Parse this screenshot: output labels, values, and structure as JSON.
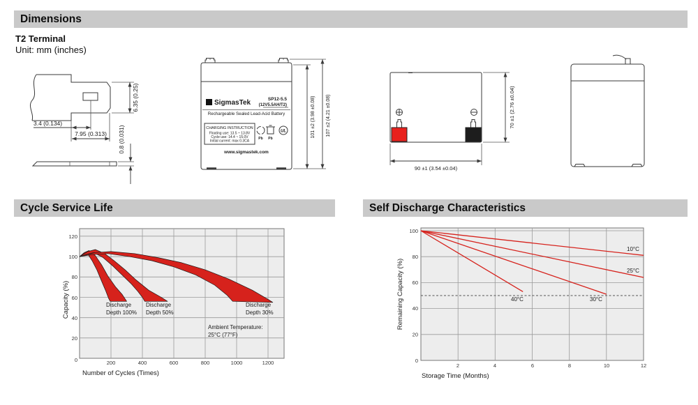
{
  "sections": {
    "dimensions_title": "Dimensions",
    "cycle_title": "Cycle Service Life",
    "self_discharge_title": "Self Discharge Characteristics"
  },
  "dimensions": {
    "terminal_type": "T2 Terminal",
    "unit_note": "Unit: mm (inches)",
    "terminal_drawing": {
      "offset": "3.4 (0.134)",
      "tab_length": "7.95 (0.313)",
      "tab_width": "6.35 (0.25)",
      "thickness": "0.8 (0.031)"
    },
    "front_view": {
      "sigma": "Σ",
      "brand": "SigmasTek",
      "model": "SP12-5.5",
      "rating": "(12V5.5AH/T2)",
      "type_line": "Rechargeable Sealed Lead-Acid Battery",
      "charging_title": "CHARGING INSTRUCTION",
      "charging_lines": [
        "Floating use: 13.5 ~ 13.8V",
        "Cycle use: 14.4 ~ 15.0V",
        "Initial current: max 0.3CA"
      ],
      "website": "www.sigmastek.com",
      "pb_label": "Pb",
      "ul_label": "UL",
      "height_dim": "101 ±2 (3.98 ±0.08)",
      "total_height_dim": "107 ±2 (4.21 ±0.08)"
    },
    "top_view": {
      "width_dim": "90 ±1 (3.54 ±0.04)",
      "depth_dim": "70 ±1 (2.76 ±0.04)"
    }
  },
  "chart_data": [
    {
      "type": "area",
      "title": "Cycle Service Life",
      "xlabel": "Number of Cycles (Times)",
      "ylabel": "Capacity (%)",
      "xlim": [
        0,
        1300
      ],
      "ylim": [
        0,
        128
      ],
      "x_ticks": [
        0,
        200,
        400,
        600,
        800,
        1000,
        1200
      ],
      "y_ticks": [
        0,
        20,
        40,
        60,
        80,
        100,
        120
      ],
      "grid": true,
      "annotation": [
        "Ambient Temperature:",
        "25°C (77°F)"
      ],
      "series": [
        {
          "name": "Discharge Depth 100%",
          "label_lines": [
            "Discharge",
            "Depth 100%"
          ],
          "upper": [
            [
              0,
              100
            ],
            [
              30,
              104
            ],
            [
              60,
              106
            ],
            [
              100,
              101
            ],
            [
              140,
              92
            ],
            [
              180,
              81
            ],
            [
              230,
              70
            ],
            [
              270,
              63
            ],
            [
              300,
              56
            ]
          ],
          "lower": [
            [
              0,
              100
            ],
            [
              25,
              102
            ],
            [
              50,
              103
            ],
            [
              80,
              96
            ],
            [
              110,
              87
            ],
            [
              140,
              76
            ],
            [
              165,
              67
            ],
            [
              185,
              59
            ],
            [
              195,
              56
            ]
          ]
        },
        {
          "name": "Discharge Depth 50%",
          "label_lines": [
            "Discharge",
            "Depth 50%"
          ],
          "upper": [
            [
              0,
              100
            ],
            [
              50,
              105
            ],
            [
              100,
              107
            ],
            [
              160,
              103
            ],
            [
              220,
              96
            ],
            [
              290,
              87
            ],
            [
              360,
              77
            ],
            [
              440,
              67
            ],
            [
              520,
              60
            ],
            [
              560,
              56
            ]
          ],
          "lower": [
            [
              0,
              100
            ],
            [
              40,
              102
            ],
            [
              90,
              104
            ],
            [
              150,
              99
            ],
            [
              210,
              91
            ],
            [
              270,
              82
            ],
            [
              330,
              73
            ],
            [
              370,
              66
            ],
            [
              400,
              60
            ],
            [
              415,
              56
            ]
          ]
        },
        {
          "name": "Discharge Depth 30%",
          "label_lines": [
            "Discharge",
            "Depth 30%"
          ],
          "upper": [
            [
              0,
              100
            ],
            [
              100,
              104
            ],
            [
              200,
              105
            ],
            [
              350,
              103
            ],
            [
              500,
              99
            ],
            [
              650,
              94
            ],
            [
              800,
              87
            ],
            [
              950,
              78
            ],
            [
              1100,
              67
            ],
            [
              1200,
              58
            ],
            [
              1230,
              55
            ]
          ],
          "lower": [
            [
              0,
              100
            ],
            [
              80,
              102
            ],
            [
              180,
              103
            ],
            [
              320,
              100
            ],
            [
              460,
              96
            ],
            [
              600,
              90
            ],
            [
              740,
              82
            ],
            [
              860,
              72
            ],
            [
              940,
              62
            ],
            [
              975,
              56
            ]
          ]
        }
      ]
    },
    {
      "type": "line",
      "title": "Self Discharge Characteristics",
      "xlabel": "Storage Time (Months)",
      "ylabel": "Remaining Capacity (%)",
      "xlim": [
        0,
        12
      ],
      "ylim": [
        0,
        100
      ],
      "x_ticks": [
        0,
        2,
        4,
        6,
        8,
        10,
        12
      ],
      "y_ticks": [
        0,
        20,
        40,
        60,
        80,
        100
      ],
      "grid": true,
      "reference_line_y": 50,
      "legend_position": "on-lines",
      "series": [
        {
          "name": "10°C",
          "points": [
            [
              0,
              100
            ],
            [
              12,
              81
            ]
          ]
        },
        {
          "name": "25°C",
          "points": [
            [
              0,
              100
            ],
            [
              12,
              64
            ]
          ]
        },
        {
          "name": "30°C",
          "points": [
            [
              0,
              100
            ],
            [
              10,
              51
            ]
          ]
        },
        {
          "name": "40°C",
          "points": [
            [
              0,
              100
            ],
            [
              5.5,
              53
            ]
          ]
        }
      ]
    }
  ],
  "colors": {
    "accent_red": "#d6221c",
    "header_bar": "#c9c9c9",
    "chart_bg": "#ededed",
    "grid_line": "#9a9a9a",
    "terminal_positive": "#e8211d",
    "terminal_negative": "#1d1d1d"
  }
}
